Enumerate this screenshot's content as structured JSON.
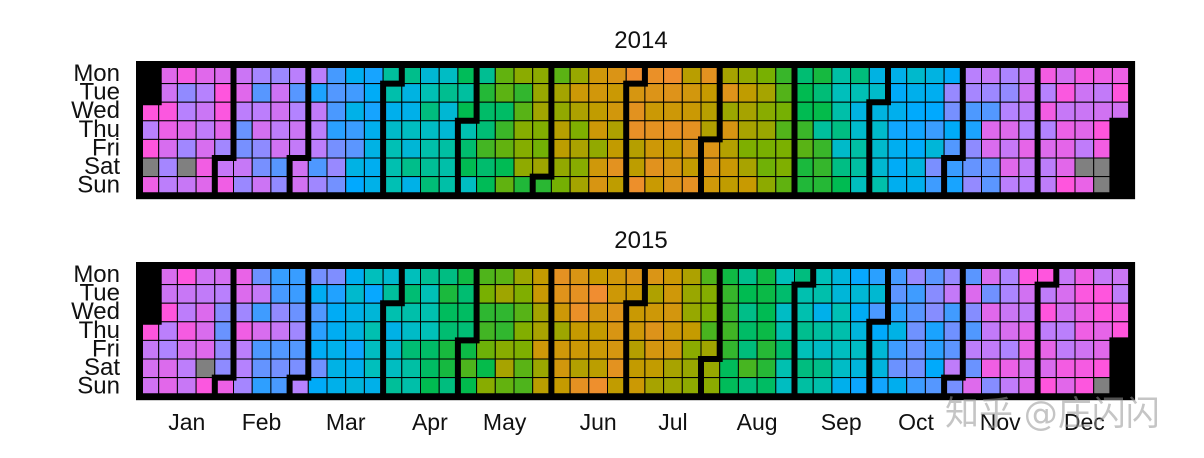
{
  "chart_data": {
    "type": "heatmap",
    "layout": "calendar",
    "panels": [
      {
        "title": "2014",
        "year": 2014,
        "first_weekday_of_year": 2,
        "values_note": "daily value on a 0-1 color scale; per-week columns, rows Mon..Sun",
        "weekly_levels": [
          0.05,
          0.06,
          0.07,
          0.08,
          0.06,
          0.1,
          0.12,
          0.14,
          0.13,
          0.18,
          0.22,
          0.26,
          0.3,
          0.34,
          0.36,
          0.38,
          0.4,
          0.42,
          0.5,
          0.55,
          0.6,
          0.62,
          0.66,
          0.7,
          0.74,
          0.76,
          0.8,
          0.82,
          0.8,
          0.78,
          0.76,
          0.74,
          0.7,
          0.64,
          0.6,
          0.52,
          0.48,
          0.42,
          0.38,
          0.34,
          0.3,
          0.28,
          0.24,
          0.2,
          0.16,
          0.12,
          0.08,
          0.06,
          0.05,
          0.04,
          0.06,
          0.04,
          0.03
        ],
        "missing_days": [
          "2014-01-04",
          "2014-01-18",
          "2014-12-20",
          "2014-12-27",
          "2014-12-28"
        ]
      },
      {
        "title": "2015",
        "year": 2015,
        "first_weekday_of_year": 3,
        "values_note": "daily value on a 0-1 color scale; per-week columns, rows Mon..Sun",
        "weekly_levels": [
          0.06,
          0.07,
          0.05,
          0.08,
          0.1,
          0.1,
          0.14,
          0.16,
          0.18,
          0.2,
          0.24,
          0.28,
          0.32,
          0.34,
          0.38,
          0.42,
          0.46,
          0.52,
          0.58,
          0.62,
          0.66,
          0.72,
          0.76,
          0.78,
          0.8,
          0.8,
          0.78,
          0.74,
          0.72,
          0.68,
          0.62,
          0.56,
          0.5,
          0.46,
          0.42,
          0.4,
          0.36,
          0.32,
          0.3,
          0.26,
          0.22,
          0.2,
          0.18,
          0.14,
          0.12,
          0.1,
          0.08,
          0.06,
          0.04,
          0.05,
          0.04,
          0.03,
          0.03
        ],
        "missing_days": [
          "2015-01-24",
          "2015-12-27"
        ]
      }
    ],
    "day_labels": [
      "Mon",
      "Tue",
      "Wed",
      "Thu",
      "Fri",
      "Sat",
      "Sun"
    ],
    "month_labels": [
      "Jan",
      "Feb",
      "Mar",
      "Apr",
      "May",
      "Jun",
      "Jul",
      "Aug",
      "Sep",
      "Oct",
      "Nov",
      "Dec"
    ],
    "color_scale": [
      "#ff55dd",
      "#b483ff",
      "#00a9ff",
      "#00c0b8",
      "#00bb4e",
      "#7ab000",
      "#c79a00",
      "#f08e2f",
      "#f8766d"
    ],
    "missing_color": "#808080",
    "legend": "none",
    "grid": false
  },
  "watermark": {
    "text": "知乎 @庄闪闪"
  }
}
